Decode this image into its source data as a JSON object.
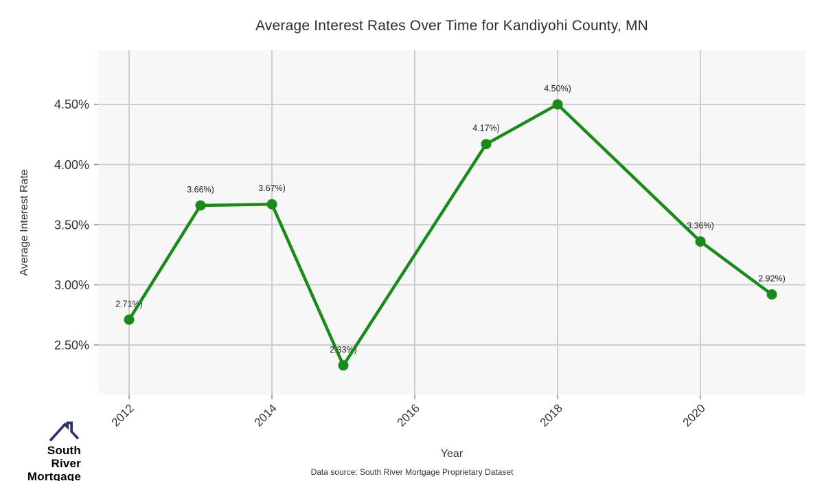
{
  "chart_data": {
    "type": "line",
    "title": "Average Interest Rates Over Time for Kandiyohi County, MN",
    "xlabel": "Year",
    "ylabel": "Average Interest Rate",
    "source_note": "Data source: South River Mortgage Proprietary Dataset",
    "legend": "none",
    "grid": true,
    "xlim": [
      2011.567,
      2021.471
    ],
    "ylim": [
      2.083,
      4.951
    ],
    "xticks": [
      {
        "value": 2012,
        "label": "2012"
      },
      {
        "value": 2014,
        "label": "2014"
      },
      {
        "value": 2016,
        "label": "2016"
      },
      {
        "value": 2018,
        "label": "2018"
      },
      {
        "value": 2020,
        "label": "2020"
      }
    ],
    "yticks": [
      {
        "value": 2.5,
        "label": "2.50%"
      },
      {
        "value": 3.0,
        "label": "3.00%"
      },
      {
        "value": 3.5,
        "label": "3.50%"
      },
      {
        "value": 4.0,
        "label": "4.00%"
      },
      {
        "value": 4.5,
        "label": "4.50%"
      }
    ],
    "series": [
      {
        "name": "Average Interest Rate",
        "color": "#1a8a1a",
        "points": [
          {
            "x": 2012,
            "y": 2.71,
            "label": "2.71%)"
          },
          {
            "x": 2013,
            "y": 3.66,
            "label": "3.66%)"
          },
          {
            "x": 2014,
            "y": 3.67,
            "label": "3.67%)"
          },
          {
            "x": 2015,
            "y": 2.33,
            "label": "2.33%)"
          },
          {
            "x": 2017,
            "y": 4.17,
            "label": "4.17%)"
          },
          {
            "x": 2018,
            "y": 4.5,
            "label": "4.50%)"
          },
          {
            "x": 2020,
            "y": 3.36,
            "label": "3.36%)"
          },
          {
            "x": 2021,
            "y": 2.92,
            "label": "2.92%)"
          }
        ]
      }
    ],
    "colors": {
      "panel_bg": "#f7f7f7",
      "gridline": "#cdcdcd",
      "tick_mark": "#8a8a8a",
      "tick_text": "#333333",
      "data_label": "#1f1f1f",
      "line_green": "#1a8a1a"
    }
  },
  "logo": {
    "line1": "South River",
    "line2": "Mortgage",
    "text_color": "#3f56a6",
    "roof_color": "#2b3467",
    "icon": "house-roof-icon"
  }
}
